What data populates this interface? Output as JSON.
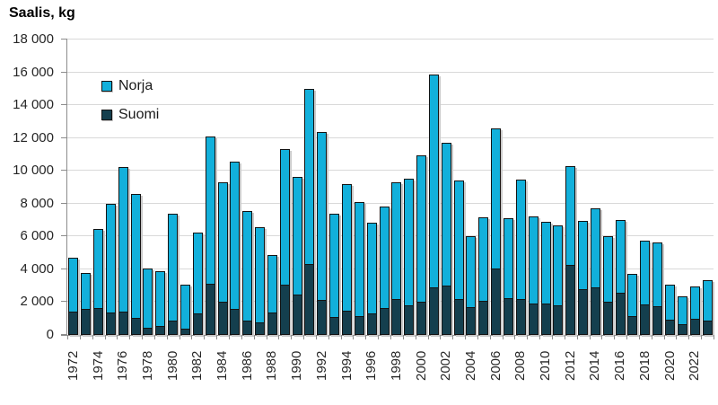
{
  "title": "Saalis, kg",
  "colors": {
    "norja": "#12b0db",
    "suomi": "#143f4e",
    "bar_border": "#141414",
    "gridline": "#d9d9d9",
    "axis": "#8c8c8c",
    "shadow": "#c9c9c9",
    "text": "#262626"
  },
  "legend": {
    "items": [
      {
        "label": "Norja",
        "color": "#12b0db"
      },
      {
        "label": "Suomi",
        "color": "#143f4e"
      }
    ]
  },
  "chart_data": {
    "type": "bar",
    "stacked": true,
    "title": "Saalis, kg",
    "ylabel": "Saalis, kg",
    "xlabel": "",
    "ylim": [
      0,
      18000
    ],
    "ytick_step": 2000,
    "ytick_labels": [
      "0",
      "2 000",
      "4 000",
      "6 000",
      "8 000",
      "10 000",
      "12 000",
      "14 000",
      "16 000",
      "18 000"
    ],
    "grid": "horizontal",
    "legend_position": "top-left-inside",
    "categories": [
      1972,
      1973,
      1974,
      1975,
      1976,
      1977,
      1978,
      1979,
      1980,
      1981,
      1982,
      1983,
      1984,
      1985,
      1986,
      1987,
      1988,
      1989,
      1990,
      1991,
      1992,
      1993,
      1994,
      1995,
      1996,
      1997,
      1998,
      1999,
      2000,
      2001,
      2002,
      2003,
      2004,
      2005,
      2006,
      2007,
      2008,
      2009,
      2010,
      2011,
      2012,
      2013,
      2014,
      2015,
      2016,
      2017,
      2018,
      2019,
      2020,
      2021,
      2022,
      2023
    ],
    "xtick_labels": [
      "1972",
      "1974",
      "1976",
      "1978",
      "1980",
      "1982",
      "1984",
      "1986",
      "1988",
      "1990",
      "1992",
      "1994",
      "1996",
      "1998",
      "2000",
      "2002",
      "2004",
      "2006",
      "2008",
      "2010",
      "2012",
      "2014",
      "2016",
      "2018",
      "2020",
      "2022"
    ],
    "series": [
      {
        "name": "Norja",
        "color": "#12b0db",
        "values": [
          3350,
          2250,
          4850,
          6700,
          8850,
          7600,
          3650,
          3400,
          6550,
          2750,
          5000,
          9000,
          7350,
          9000,
          6750,
          5850,
          3550,
          8300,
          7200,
          10750,
          10300,
          6350,
          7750,
          7000,
          5600,
          6250,
          7150,
          7750,
          8950,
          13000,
          8750,
          7250,
          4400,
          5150,
          8600,
          4950,
          7350,
          5350,
          5050,
          4950,
          6050,
          4200,
          4850,
          4050,
          4500,
          2650,
          3950,
          3950,
          2200,
          1750,
          2050,
          2500
        ]
      },
      {
        "name": "Suomi",
        "color": "#143f4e",
        "values": [
          1400,
          1600,
          1650,
          1350,
          1400,
          1050,
          450,
          550,
          850,
          400,
          1300,
          3100,
          2000,
          1600,
          900,
          750,
          1350,
          3050,
          2450,
          4300,
          2150,
          1100,
          1450,
          1150,
          1300,
          1650,
          2200,
          1800,
          2000,
          2900,
          3000,
          2200,
          1700,
          2100,
          4050,
          2250,
          2200,
          1900,
          1900,
          1800,
          4250,
          2800,
          2900,
          2000,
          2550,
          1150,
          1850,
          1750,
          950,
          650,
          1000,
          900
        ]
      }
    ],
    "totals": [
      4750,
      3850,
      6500,
      8050,
      10250,
      8650,
      4100,
      3950,
      7400,
      3150,
      6300,
      12100,
      9350,
      10600,
      7650,
      6600,
      4900,
      11350,
      9650,
      15050,
      12450,
      7450,
      9200,
      8150,
      6900,
      7900,
      9350,
      9550,
      10950,
      15900,
      11750,
      9450,
      6100,
      7250,
      12650,
      7200,
      9550,
      7250,
      6950,
      6750,
      10300,
      7000,
      7750,
      6050,
      7050,
      3800,
      5800,
      5700,
      3150,
      2400,
      3050,
      3400
    ]
  }
}
